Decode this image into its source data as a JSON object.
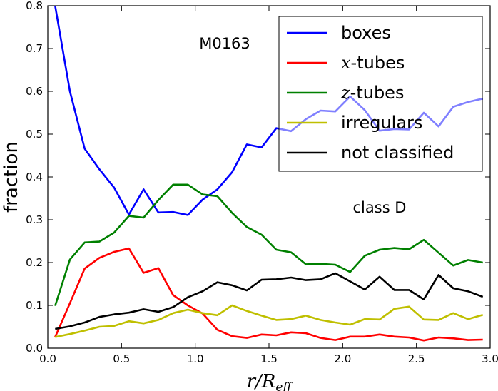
{
  "chart_data": {
    "type": "line",
    "xlabel_parts": {
      "main": "r/R",
      "sub": "eff"
    },
    "ylabel": "fraction",
    "xlim": [
      0.0,
      3.0
    ],
    "ylim": [
      0.0,
      0.8
    ],
    "xticks": [
      0.0,
      0.5,
      1.0,
      1.5,
      2.0,
      2.5,
      3.0
    ],
    "xtick_labels": [
      "0.0",
      "0.5",
      "1.0",
      "1.5",
      "2.0",
      "2.5",
      "3.0"
    ],
    "yticks": [
      0.0,
      0.1,
      0.2,
      0.3,
      0.4,
      0.5,
      0.6,
      0.7,
      0.8
    ],
    "ytick_labels": [
      "0.0",
      "0.1",
      "0.2",
      "0.3",
      "0.4",
      "0.5",
      "0.6",
      "0.7",
      "0.8"
    ],
    "annotations": [
      {
        "name": "galaxy-id-label",
        "text": "M0163",
        "x": 1.2,
        "y": 0.7
      },
      {
        "name": "class-label",
        "text": "class D",
        "x": 2.25,
        "y": 0.317
      }
    ],
    "legend_position": "top-right",
    "x": [
      0.05,
      0.15,
      0.25,
      0.35,
      0.45,
      0.55,
      0.65,
      0.75,
      0.85,
      0.95,
      1.05,
      1.15,
      1.25,
      1.35,
      1.45,
      1.55,
      1.65,
      1.75,
      1.85,
      1.95,
      2.05,
      2.15,
      2.25,
      2.35,
      2.45,
      2.55,
      2.65,
      2.75,
      2.85,
      2.95
    ],
    "series": [
      {
        "name": "boxes",
        "legend_prefix": "",
        "legend_italic": "",
        "legend_suffix": "boxes",
        "color": "#0000ff",
        "values": [
          0.8,
          0.6,
          0.466,
          0.418,
          0.375,
          0.312,
          0.371,
          0.317,
          0.318,
          0.311,
          0.347,
          0.371,
          0.411,
          0.476,
          0.469,
          0.514,
          0.507,
          0.535,
          0.555,
          0.553,
          0.588,
          0.556,
          0.508,
          0.512,
          0.511,
          0.55,
          0.518,
          0.564,
          0.575,
          0.583
        ]
      },
      {
        "name": "x-tubes",
        "legend_prefix": "",
        "legend_italic": "x",
        "legend_suffix": "-tubes",
        "color": "#ff0000",
        "values": [
          0.026,
          0.105,
          0.186,
          0.211,
          0.225,
          0.233,
          0.176,
          0.187,
          0.124,
          0.1,
          0.081,
          0.043,
          0.028,
          0.024,
          0.032,
          0.03,
          0.037,
          0.035,
          0.024,
          0.019,
          0.027,
          0.027,
          0.032,
          0.027,
          0.025,
          0.018,
          0.025,
          0.023,
          0.019,
          0.02
        ]
      },
      {
        "name": "z-tubes",
        "legend_prefix": "",
        "legend_italic": "z",
        "legend_suffix": "-tubes",
        "color": "#008000",
        "values": [
          0.099,
          0.207,
          0.247,
          0.249,
          0.27,
          0.309,
          0.305,
          0.346,
          0.382,
          0.382,
          0.359,
          0.355,
          0.316,
          0.283,
          0.265,
          0.23,
          0.224,
          0.196,
          0.197,
          0.195,
          0.178,
          0.216,
          0.23,
          0.234,
          0.231,
          0.253,
          0.223,
          0.193,
          0.206,
          0.2
        ]
      },
      {
        "name": "irregulars",
        "legend_prefix": "",
        "legend_italic": "",
        "legend_suffix": "irregulars",
        "color": "#bfbf00",
        "values": [
          0.026,
          0.033,
          0.041,
          0.05,
          0.052,
          0.063,
          0.058,
          0.066,
          0.082,
          0.09,
          0.082,
          0.077,
          0.1,
          0.087,
          0.076,
          0.066,
          0.068,
          0.076,
          0.066,
          0.06,
          0.055,
          0.068,
          0.067,
          0.092,
          0.097,
          0.067,
          0.066,
          0.082,
          0.068,
          0.078
        ]
      },
      {
        "name": "not classified",
        "legend_prefix": "",
        "legend_italic": "",
        "legend_suffix": "not classified",
        "color": "#000000",
        "values": [
          0.045,
          0.051,
          0.06,
          0.073,
          0.079,
          0.083,
          0.091,
          0.085,
          0.096,
          0.119,
          0.133,
          0.154,
          0.147,
          0.135,
          0.16,
          0.161,
          0.165,
          0.159,
          0.161,
          0.175,
          0.156,
          0.137,
          0.167,
          0.136,
          0.136,
          0.114,
          0.171,
          0.14,
          0.133,
          0.12
        ]
      }
    ]
  }
}
